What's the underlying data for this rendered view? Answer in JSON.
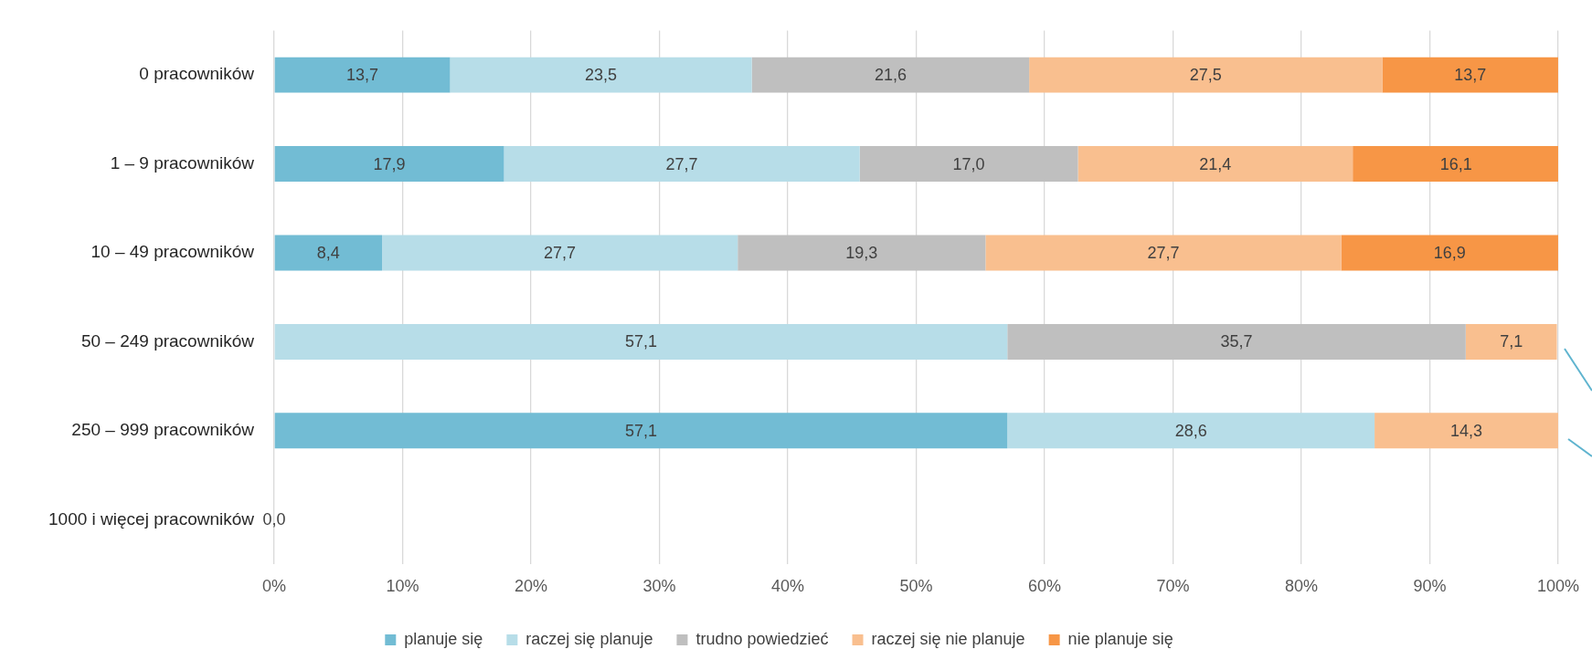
{
  "chart_data": {
    "type": "bar",
    "orientation": "horizontal",
    "stacked": true,
    "categories": [
      "0 pracowników",
      "1 – 9 pracowników",
      "10 – 49 pracowników",
      "50 – 249 pracowników",
      "250 – 999 pracowników",
      "1000 i więcej pracowników"
    ],
    "series": [
      {
        "name": "planuje się",
        "color": "#72bcd4",
        "values": [
          13.7,
          17.9,
          8.4,
          null,
          57.1,
          0.0
        ],
        "value_labels": [
          "13,7",
          "17,9",
          "8,4",
          null,
          "57,1",
          "0,0"
        ]
      },
      {
        "name": "raczej się planuje",
        "color": "#b7dde8",
        "values": [
          23.5,
          27.7,
          27.7,
          57.1,
          28.6,
          null
        ],
        "value_labels": [
          "23,5",
          "27,7",
          "27,7",
          "57,1",
          "28,6",
          null
        ]
      },
      {
        "name": "trudno powiedzieć",
        "color": "#bfbfbf",
        "values": [
          21.6,
          17.0,
          19.3,
          35.7,
          null,
          null
        ],
        "value_labels": [
          "21,6",
          "17,0",
          "19,3",
          "35,7",
          null,
          null
        ]
      },
      {
        "name": "raczej się nie planuje",
        "color": "#f9bf8f",
        "values": [
          27.5,
          21.4,
          27.7,
          7.1,
          14.3,
          null
        ],
        "value_labels": [
          "27,5",
          "21,4",
          "27,7",
          "7,1",
          "14,3",
          null
        ]
      },
      {
        "name": "nie planuje się",
        "color": "#f79646",
        "values": [
          13.7,
          16.1,
          16.9,
          null,
          null,
          null
        ],
        "value_labels": [
          "13,7",
          "16,1",
          "16,9",
          null,
          null,
          null
        ]
      }
    ],
    "xlim": [
      0,
      100
    ],
    "xticks": [
      {
        "value": 0,
        "label": "0%"
      },
      {
        "value": 10,
        "label": "10%"
      },
      {
        "value": 20,
        "label": "20%"
      },
      {
        "value": 30,
        "label": "30%"
      },
      {
        "value": 40,
        "label": "40%"
      },
      {
        "value": 50,
        "label": "50%"
      },
      {
        "value": 60,
        "label": "60%"
      },
      {
        "value": 70,
        "label": "70%"
      },
      {
        "value": 80,
        "label": "80%"
      },
      {
        "value": 90,
        "label": "90%"
      },
      {
        "value": 100,
        "label": "100%"
      }
    ],
    "grid": "x",
    "legend": "bottom"
  }
}
